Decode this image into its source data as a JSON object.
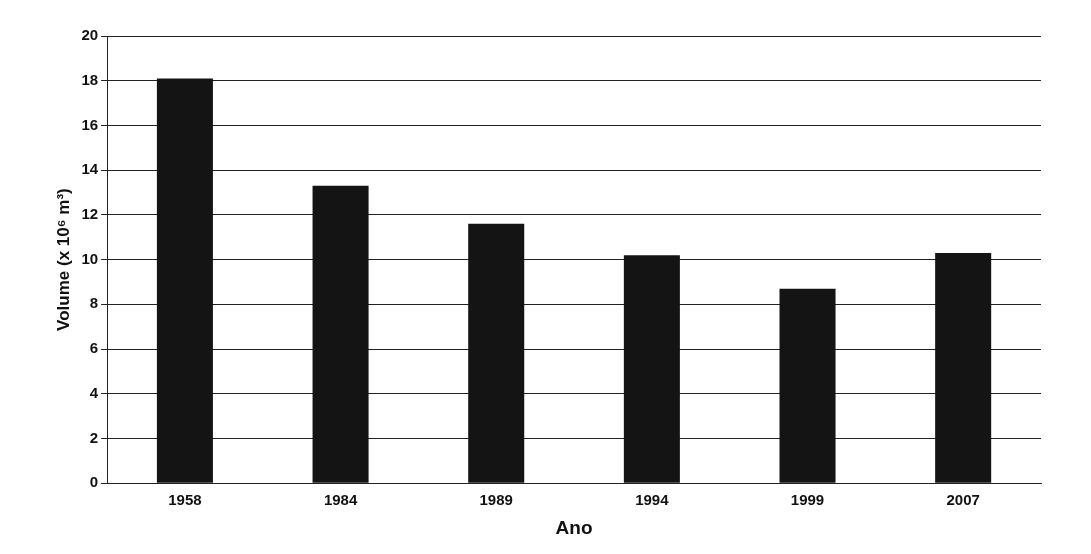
{
  "chart_data": {
    "type": "bar",
    "xlabel": "Ano",
    "ylabel": "Volume (x 10⁶ m³)",
    "categories": [
      "1958",
      "1984",
      "1989",
      "1994",
      "1999",
      "2007"
    ],
    "values": [
      18.1,
      13.3,
      11.6,
      10.2,
      8.7,
      10.3
    ],
    "color": "#141414",
    "ylim": [
      0,
      20
    ],
    "yticks": [
      0,
      2,
      4,
      6,
      8,
      10,
      12,
      14,
      16,
      18,
      20
    ],
    "grid": "y",
    "legend": false
  }
}
